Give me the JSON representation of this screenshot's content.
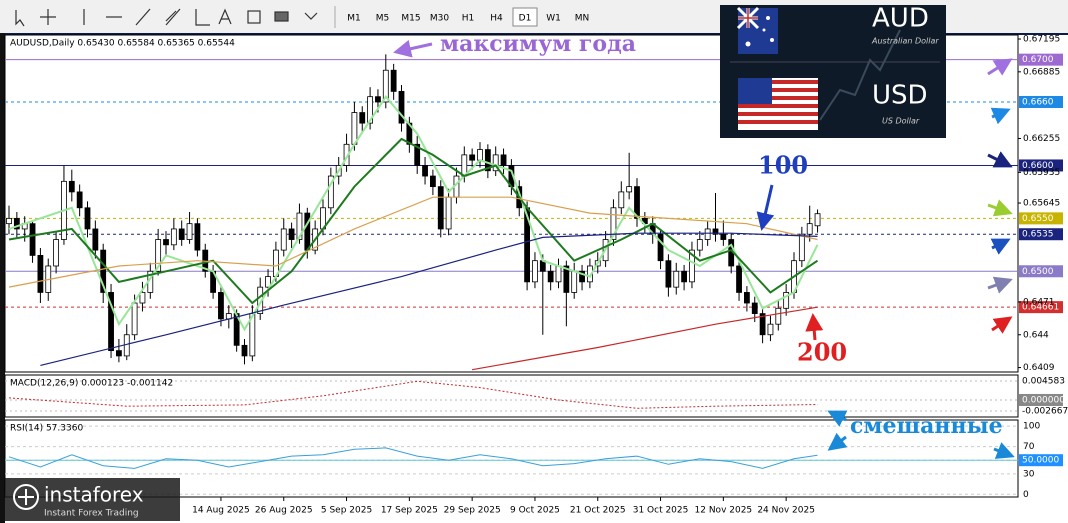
{
  "toolbar": {
    "timeframes": [
      "M1",
      "M5",
      "M15",
      "M30",
      "H1",
      "H4",
      "D1",
      "W1",
      "MN"
    ],
    "active": 6
  },
  "chart": {
    "type": "candlestick",
    "header": "AUDUSD,Daily  0.65430 0.65584 0.65365 0.65544",
    "ylim": [
      0.64048,
      0.67233
    ],
    "yticks": [
      0.67195,
      0.66885,
      0.66255,
      0.65935,
      0.65645,
      0.6471,
      0.644,
      0.6409
    ],
    "candles": [
      [
        0.6545,
        0.6562,
        0.6535,
        0.655
      ],
      [
        0.655,
        0.6556,
        0.6532,
        0.654
      ],
      [
        0.654,
        0.6552,
        0.6528,
        0.6545
      ],
      [
        0.6545,
        0.6548,
        0.6508,
        0.6515
      ],
      [
        0.6515,
        0.6522,
        0.647,
        0.648
      ],
      [
        0.648,
        0.6512,
        0.6472,
        0.6505
      ],
      [
        0.6505,
        0.6538,
        0.6498,
        0.653
      ],
      [
        0.653,
        0.66,
        0.6525,
        0.6585
      ],
      [
        0.6585,
        0.6596,
        0.6566,
        0.6575
      ],
      [
        0.6575,
        0.6582,
        0.6552,
        0.656
      ],
      [
        0.656,
        0.6566,
        0.6532,
        0.654
      ],
      [
        0.654,
        0.6548,
        0.6512,
        0.652
      ],
      [
        0.652,
        0.6526,
        0.647,
        0.648
      ],
      [
        0.648,
        0.6488,
        0.6418,
        0.6425
      ],
      [
        0.6425,
        0.6436,
        0.6414,
        0.642
      ],
      [
        0.642,
        0.645,
        0.6416,
        0.644
      ],
      [
        0.644,
        0.6478,
        0.6435,
        0.647
      ],
      [
        0.647,
        0.649,
        0.6462,
        0.648
      ],
      [
        0.648,
        0.6508,
        0.6474,
        0.65
      ],
      [
        0.65,
        0.654,
        0.6496,
        0.653
      ],
      [
        0.653,
        0.6538,
        0.6515,
        0.6525
      ],
      [
        0.6525,
        0.655,
        0.652,
        0.654
      ],
      [
        0.654,
        0.6548,
        0.6524,
        0.653
      ],
      [
        0.653,
        0.6556,
        0.6526,
        0.6545
      ],
      [
        0.6545,
        0.655,
        0.6514,
        0.652
      ],
      [
        0.652,
        0.6526,
        0.6494,
        0.65
      ],
      [
        0.65,
        0.6506,
        0.6474,
        0.648
      ],
      [
        0.648,
        0.6486,
        0.6448,
        0.6455
      ],
      [
        0.6455,
        0.6468,
        0.6446,
        0.646
      ],
      [
        0.646,
        0.6464,
        0.6424,
        0.643
      ],
      [
        0.643,
        0.6436,
        0.6412,
        0.642
      ],
      [
        0.642,
        0.6468,
        0.6415,
        0.646
      ],
      [
        0.646,
        0.6494,
        0.6454,
        0.6485
      ],
      [
        0.6485,
        0.6502,
        0.6476,
        0.6495
      ],
      [
        0.6495,
        0.6528,
        0.649,
        0.652
      ],
      [
        0.652,
        0.655,
        0.6514,
        0.654
      ],
      [
        0.654,
        0.6546,
        0.6522,
        0.653
      ],
      [
        0.653,
        0.6564,
        0.6526,
        0.6555
      ],
      [
        0.6555,
        0.656,
        0.6512,
        0.652
      ],
      [
        0.652,
        0.6548,
        0.6516,
        0.654
      ],
      [
        0.654,
        0.6568,
        0.6534,
        0.656
      ],
      [
        0.656,
        0.6598,
        0.6554,
        0.659
      ],
      [
        0.659,
        0.6608,
        0.6582,
        0.66
      ],
      [
        0.66,
        0.663,
        0.6594,
        0.662
      ],
      [
        0.662,
        0.666,
        0.6614,
        0.665
      ],
      [
        0.665,
        0.6656,
        0.6632,
        0.664
      ],
      [
        0.664,
        0.6674,
        0.6634,
        0.6665
      ],
      [
        0.6665,
        0.6672,
        0.665,
        0.666
      ],
      [
        0.666,
        0.6705,
        0.6654,
        0.669
      ],
      [
        0.669,
        0.6696,
        0.6662,
        0.667
      ],
      [
        0.667,
        0.6676,
        0.6632,
        0.664
      ],
      [
        0.664,
        0.6646,
        0.6612,
        0.662
      ],
      [
        0.662,
        0.6628,
        0.6592,
        0.66
      ],
      [
        0.66,
        0.6608,
        0.6582,
        0.659
      ],
      [
        0.659,
        0.6596,
        0.6572,
        0.658
      ],
      [
        0.658,
        0.6586,
        0.6532,
        0.654
      ],
      [
        0.654,
        0.6578,
        0.6534,
        0.657
      ],
      [
        0.657,
        0.6598,
        0.6564,
        0.659
      ],
      [
        0.659,
        0.6618,
        0.6584,
        0.661
      ],
      [
        0.661,
        0.6616,
        0.6596,
        0.6605
      ],
      [
        0.6605,
        0.6622,
        0.6598,
        0.6615
      ],
      [
        0.6615,
        0.662,
        0.6588,
        0.6595
      ],
      [
        0.6595,
        0.6618,
        0.659,
        0.661
      ],
      [
        0.661,
        0.6616,
        0.6592,
        0.66
      ],
      [
        0.66,
        0.6606,
        0.6572,
        0.658
      ],
      [
        0.658,
        0.6586,
        0.6552,
        0.656
      ],
      [
        0.656,
        0.6566,
        0.6482,
        0.649
      ],
      [
        0.649,
        0.6518,
        0.6484,
        0.651
      ],
      [
        0.651,
        0.6516,
        0.644,
        0.65
      ],
      [
        0.65,
        0.6506,
        0.6482,
        0.649
      ],
      [
        0.649,
        0.6512,
        0.6484,
        0.6505
      ],
      [
        0.6505,
        0.651,
        0.6448,
        0.648
      ],
      [
        0.648,
        0.6508,
        0.6474,
        0.65
      ],
      [
        0.65,
        0.6506,
        0.6482,
        0.649
      ],
      [
        0.649,
        0.6512,
        0.6484,
        0.6505
      ],
      [
        0.6505,
        0.6518,
        0.6498,
        0.651
      ],
      [
        0.651,
        0.6538,
        0.6504,
        0.653
      ],
      [
        0.653,
        0.6568,
        0.6524,
        0.656
      ],
      [
        0.656,
        0.6585,
        0.6554,
        0.6575
      ],
      [
        0.6575,
        0.6612,
        0.6568,
        0.658
      ],
      [
        0.658,
        0.6588,
        0.6542,
        0.655
      ],
      [
        0.655,
        0.6556,
        0.6536,
        0.6545
      ],
      [
        0.6545,
        0.6552,
        0.6526,
        0.6535
      ],
      [
        0.6535,
        0.654,
        0.6502,
        0.651
      ],
      [
        0.651,
        0.6516,
        0.6476,
        0.6485
      ],
      [
        0.6485,
        0.6508,
        0.6478,
        0.65
      ],
      [
        0.65,
        0.6506,
        0.6482,
        0.649
      ],
      [
        0.649,
        0.6528,
        0.6484,
        0.652
      ],
      [
        0.652,
        0.6538,
        0.6514,
        0.653
      ],
      [
        0.653,
        0.6548,
        0.6524,
        0.654
      ],
      [
        0.654,
        0.6574,
        0.6528,
        0.6535
      ],
      [
        0.6535,
        0.6548,
        0.6524,
        0.653
      ],
      [
        0.653,
        0.6536,
        0.6498,
        0.6505
      ],
      [
        0.6505,
        0.6512,
        0.6472,
        0.648
      ],
      [
        0.648,
        0.6486,
        0.6462,
        0.647
      ],
      [
        0.647,
        0.6476,
        0.6452,
        0.646
      ],
      [
        0.646,
        0.6466,
        0.6432,
        0.644
      ],
      [
        0.644,
        0.6458,
        0.6434,
        0.645
      ],
      [
        0.645,
        0.6472,
        0.6444,
        0.6465
      ],
      [
        0.6465,
        0.6488,
        0.6458,
        0.648
      ],
      [
        0.648,
        0.6518,
        0.6474,
        0.651
      ],
      [
        0.651,
        0.6542,
        0.6504,
        0.6535
      ],
      [
        0.6535,
        0.6562,
        0.6528,
        0.6545
      ],
      [
        0.6543,
        0.65584,
        0.65365,
        0.65544
      ]
    ],
    "moving_averages": [
      {
        "color": "#98e698",
        "x": [
          0,
          8,
          14,
          20,
          26,
          30,
          36,
          44,
          48,
          52,
          56,
          60,
          64,
          68,
          74,
          79,
          84,
          88,
          92,
          96,
          100,
          103
        ],
        "values": [
          0.654,
          0.656,
          0.645,
          0.6515,
          0.65,
          0.6445,
          0.652,
          0.662,
          0.6665,
          0.663,
          0.6575,
          0.6605,
          0.6595,
          0.651,
          0.6495,
          0.656,
          0.652,
          0.6505,
          0.6525,
          0.6465,
          0.648,
          0.6525
        ]
      },
      {
        "color": "#1e7a1e",
        "x": [
          0,
          8,
          14,
          20,
          26,
          31,
          36,
          44,
          50,
          54,
          58,
          62,
          66,
          72,
          78,
          82,
          88,
          92,
          97,
          103
        ],
        "values": [
          0.653,
          0.654,
          0.649,
          0.65,
          0.651,
          0.647,
          0.65,
          0.658,
          0.6625,
          0.661,
          0.659,
          0.66,
          0.656,
          0.651,
          0.653,
          0.6545,
          0.651,
          0.652,
          0.648,
          0.651
        ]
      },
      {
        "color": "#d9a050",
        "x": [
          0,
          14,
          24,
          34,
          44,
          54,
          64,
          74,
          84,
          94,
          103
        ],
        "values": [
          0.6485,
          0.6505,
          0.651,
          0.6505,
          0.654,
          0.657,
          0.657,
          0.6555,
          0.655,
          0.6545,
          0.653
        ]
      },
      {
        "color": "#1a237e",
        "x": [
          4,
          20,
          35,
          50,
          62,
          68,
          80,
          92,
          103
        ],
        "values": [
          0.6411,
          0.644,
          0.6468,
          0.6495,
          0.652,
          0.6532,
          0.6536,
          0.6536,
          0.6533
        ]
      },
      {
        "color": "#c62828",
        "x": [
          59,
          75,
          90,
          103
        ],
        "values": [
          0.6407,
          0.6428,
          0.645,
          0.6466
        ]
      }
    ],
    "levels": [
      {
        "value": 0.67,
        "label": "0.6700",
        "color": "#9c6ad0",
        "dash": false
      },
      {
        "value": 0.666,
        "label": "0.6660",
        "color": "#1e88e5",
        "dash": true
      },
      {
        "value": 0.66,
        "label": "0.6600",
        "color": "#1a237e",
        "dash": false
      },
      {
        "value": 0.655,
        "label": "0.6550",
        "color": "#c8b400",
        "dash": true
      },
      {
        "value": 0.6535,
        "color": "#1a237e",
        "dash": true
      },
      {
        "value": 0.65,
        "label": "0.6500",
        "color": "#8a7ac8",
        "dash": false
      },
      {
        "value": 0.64661,
        "color": "#d32f2f",
        "dash": true
      }
    ],
    "date_labels": {
      "x": [
        27,
        35,
        43,
        51,
        59,
        67,
        75,
        83,
        91,
        99
      ],
      "labels": [
        "14 Aug 2025",
        "26 Aug 2025",
        "5 Sep 2025",
        "17 Sep 2025",
        "29 Sep 2025",
        "9 Oct 2025",
        "21 Oct 2025",
        "31 Oct 2025",
        "12 Nov 2025",
        "24 Nov 2025"
      ]
    }
  },
  "macd": {
    "header": "MACD(12,26,9) 0.000123 -0.001142",
    "ylim": [
      -0.00411,
      0.00603
    ],
    "yticks": [
      0.004583,
      {
        "value": 0,
        "label": "0.000000"
      },
      -0.002667
    ],
    "signal": {
      "color": "#c62828",
      "x": [
        0,
        15,
        30,
        40,
        52,
        60,
        70,
        80,
        90,
        103
      ],
      "values": [
        0.0005,
        -0.0015,
        -0.0012,
        0.001,
        0.0045,
        0.003,
        0.0,
        -0.002,
        -0.0015,
        -0.0011
      ]
    }
  },
  "rsi": {
    "header": "RSI(14) 57.3360",
    "ylim": [
      -4,
      109
    ],
    "yticks": [
      100,
      70,
      50,
      30,
      0
    ],
    "level": {
      "value": 50,
      "label": "50.0000",
      "color": "#1e90ff"
    },
    "line": {
      "color": "#3aa0d8",
      "x": [
        0,
        4,
        8,
        12,
        16,
        20,
        24,
        28,
        32,
        36,
        40,
        44,
        48,
        52,
        56,
        60,
        64,
        68,
        72,
        76,
        80,
        84,
        88,
        92,
        96,
        100,
        103
      ],
      "values": [
        55,
        40,
        58,
        42,
        38,
        52,
        50,
        40,
        48,
        56,
        58,
        66,
        68,
        56,
        50,
        58,
        52,
        42,
        45,
        52,
        56,
        44,
        52,
        48,
        38,
        52,
        57.3
      ]
    }
  },
  "inset": {
    "base": "AUD",
    "base_name": "Australian Dollar",
    "quote": "USD",
    "quote_name": "US Dollar"
  },
  "annotations": {
    "year_high": "максимум года",
    "ma100": "100",
    "ma200": "200",
    "mixed": "смешанные"
  },
  "watermark": {
    "brand": "instaforex",
    "tagline": "Instant Forex Trading"
  }
}
